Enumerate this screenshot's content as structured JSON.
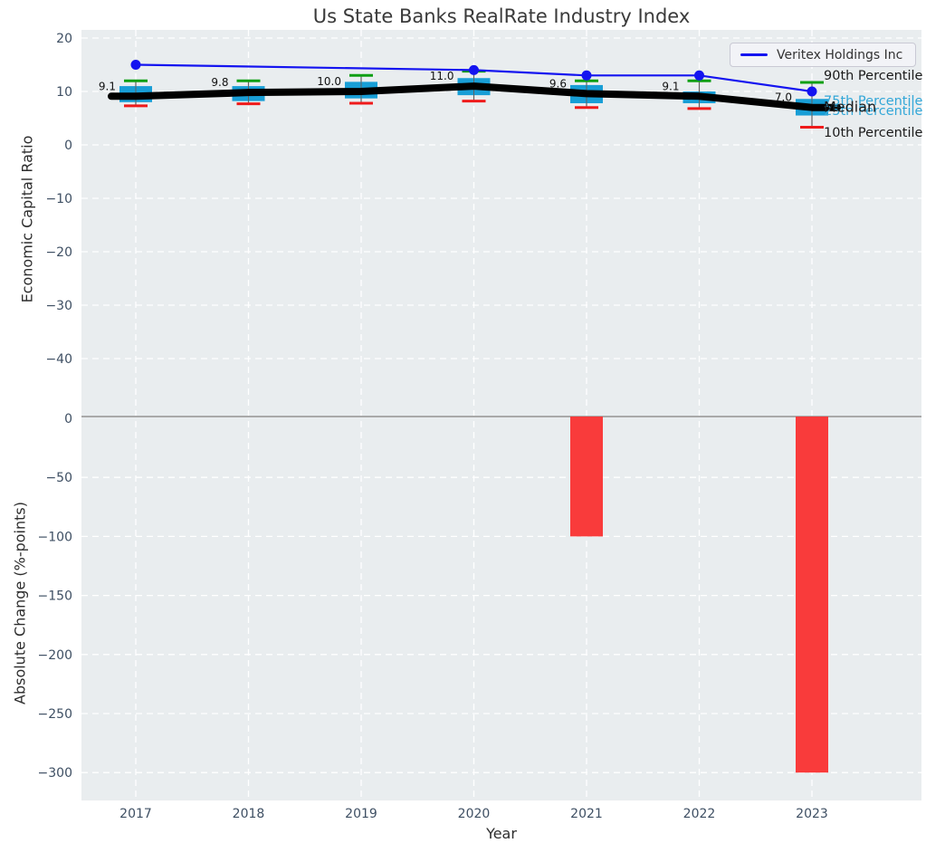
{
  "title": "Us State Banks RealRate Industry Index",
  "legend": {
    "series_label": "Veritex Holdings Inc"
  },
  "annotations": {
    "p90": "90th Percentile",
    "p75": "75th Percentile",
    "median": "Median",
    "p25": "25th Percentile",
    "p10": "10th Percentile"
  },
  "colors": {
    "axes_background": "#e9edef",
    "grid": "#ffffff",
    "zero_line": "#a9a9a9",
    "tick_label": "#3e4f63",
    "box": "#189ed6",
    "cyan_label": "#33a7d8",
    "whisker": "#606060",
    "cap_top_green": "#0f9f14",
    "cap_bottom_red": "#ef1b1b",
    "median_line": "#000000",
    "company_line": "#1414f0",
    "bar_negative": "#f93b3b",
    "value_label": "#111111"
  },
  "chart_data": [
    {
      "type": "boxplot-with-line",
      "title": "Us State Banks RealRate Industry Index",
      "xlabel": "Year",
      "ylabel": "Economic Capital Ratio",
      "categories": [
        "2017",
        "2018",
        "2019",
        "2020",
        "2021",
        "2022",
        "2023"
      ],
      "yticks": [
        20,
        10,
        0,
        -10,
        -20,
        -30,
        -40
      ],
      "ylim": [
        -48,
        21.5
      ],
      "grid": true,
      "legend_position": "upper right",
      "boxes": [
        {
          "year": "2017",
          "p10": 7.3,
          "p25": 8.0,
          "median": 9.1,
          "p75": 11.0,
          "p90": 12.0
        },
        {
          "year": "2018",
          "p10": 7.7,
          "p25": 8.2,
          "median": 9.8,
          "p75": 11.0,
          "p90": 12.0
        },
        {
          "year": "2019",
          "p10": 7.8,
          "p25": 8.7,
          "median": 10.0,
          "p75": 11.8,
          "p90": 13.0
        },
        {
          "year": "2020",
          "p10": 8.2,
          "p25": 9.3,
          "median": 11.0,
          "p75": 12.5,
          "p90": 13.8
        },
        {
          "year": "2021",
          "p10": 7.0,
          "p25": 7.8,
          "median": 9.6,
          "p75": 11.2,
          "p90": 12.0
        },
        {
          "year": "2022",
          "p10": 6.8,
          "p25": 7.8,
          "median": 9.1,
          "p75": 10.0,
          "p90": 12.0
        },
        {
          "year": "2023",
          "p10": 3.3,
          "p25": 5.5,
          "median": 7.0,
          "p75": 8.6,
          "p90": 11.7
        }
      ],
      "median_labels": [
        "9.1",
        "9.8",
        "10.0",
        "11.0",
        "9.6",
        "9.1",
        "7.0"
      ],
      "series": [
        {
          "name": "Veritex Holdings Inc",
          "points": [
            [
              "2017",
              15.0
            ],
            [
              "2020",
              14.0
            ],
            [
              "2021",
              13.0
            ],
            [
              "2022",
              13.0
            ],
            [
              "2023",
              10.0
            ]
          ]
        }
      ],
      "percentile_annotations": [
        "90th Percentile",
        "75th Percentile",
        "Median",
        "25th Percentile",
        "10th Percentile"
      ]
    },
    {
      "type": "bar",
      "xlabel": "Year",
      "ylabel": "Absolute Change (%-points)",
      "categories": [
        "2017",
        "2018",
        "2019",
        "2020",
        "2021",
        "2022",
        "2023"
      ],
      "values": [
        null,
        null,
        null,
        null,
        -100,
        null,
        -300
      ],
      "yticks": [
        0,
        -50,
        -100,
        -150,
        -200,
        -250,
        -300
      ],
      "ylim": [
        -323,
        1
      ],
      "grid": true
    }
  ]
}
